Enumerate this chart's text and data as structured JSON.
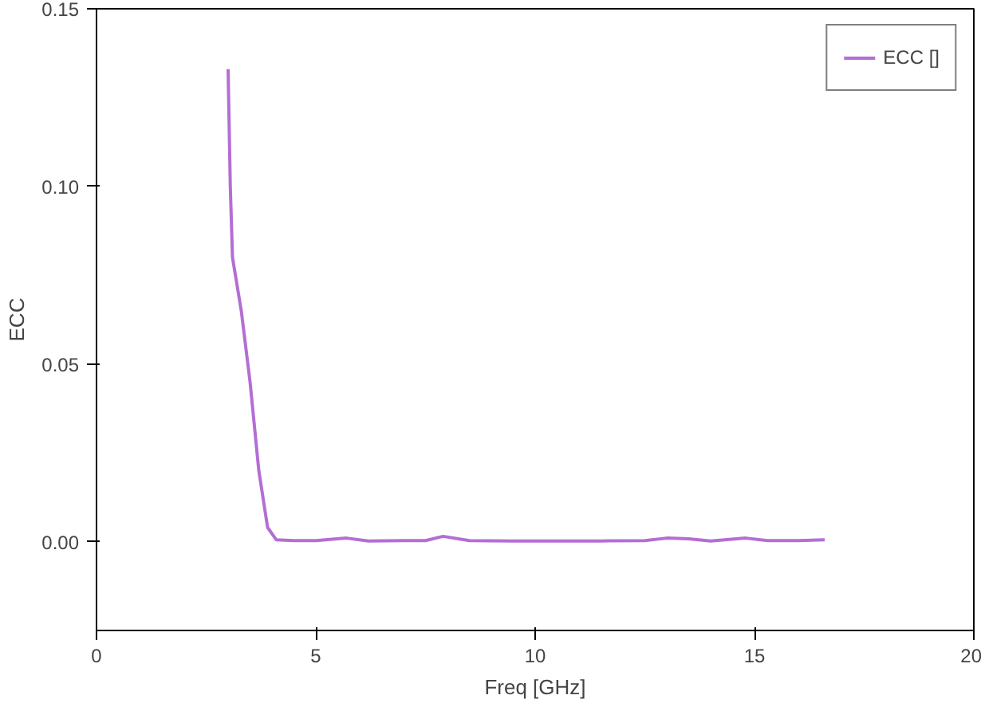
{
  "chart_data": {
    "type": "line",
    "xlabel": "Freq [GHz]",
    "ylabel": "ECC",
    "xlim": [
      0,
      20
    ],
    "xticks": [
      0,
      5,
      10,
      15,
      20
    ],
    "ylim": [
      -0.025,
      0.15
    ],
    "yticks": [
      {
        "value": 0,
        "label": "0.00"
      },
      {
        "value": 0.05,
        "label": "0.05"
      },
      {
        "value": 0.1,
        "label": "0.10"
      },
      {
        "value": 0.15,
        "label": "0.15"
      }
    ],
    "grid": false,
    "legend": "top right",
    "line_style": "solid",
    "marker": "none",
    "x": [
      3.0,
      3.05,
      3.1,
      3.3,
      3.5,
      3.7,
      3.9,
      4.1,
      4.5,
      5.0,
      5.7,
      6.2,
      7.0,
      7.5,
      7.9,
      8.5,
      9.5,
      10.5,
      11.5,
      12.5,
      13.0,
      13.5,
      14.0,
      14.8,
      15.3,
      16.0,
      16.6
    ],
    "series": [
      {
        "name": "ECC []",
        "color": "#b46ed4",
        "values": [
          0.133,
          0.1,
          0.08,
          0.065,
          0.045,
          0.02,
          0.004,
          0.0005,
          0.0003,
          0.0003,
          0.001,
          0.0002,
          0.0003,
          0.0003,
          0.0015,
          0.0003,
          0.0002,
          0.0002,
          0.0002,
          0.0003,
          0.001,
          0.0008,
          0.0002,
          0.001,
          0.0003,
          0.0003,
          0.0005
        ]
      }
    ]
  }
}
